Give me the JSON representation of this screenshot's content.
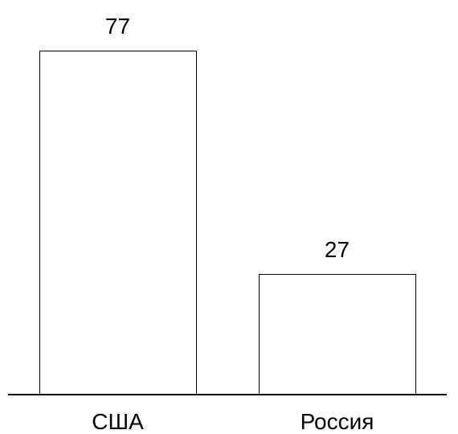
{
  "chart_data": {
    "type": "bar",
    "categories": [
      "США",
      "Россия"
    ],
    "values": [
      77,
      27
    ],
    "title": "",
    "xlabel": "",
    "ylabel": "",
    "ylim": [
      0,
      77
    ],
    "grid": false,
    "colors": {
      "bar_fill": "#ffffff",
      "bar_stroke": "#000000",
      "axis": "#000000",
      "text": "#000000"
    }
  }
}
